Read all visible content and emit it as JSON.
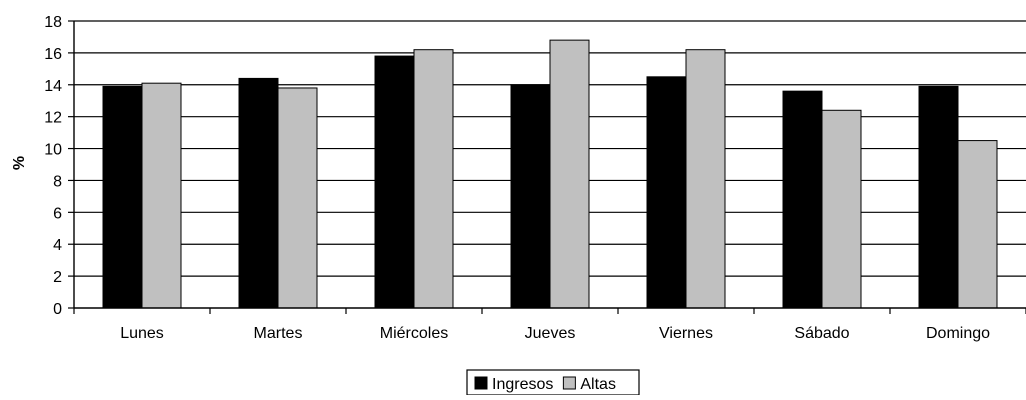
{
  "chart_data": {
    "type": "bar",
    "title": "",
    "xlabel": "",
    "ylabel": "%",
    "ylim": [
      0,
      18
    ],
    "ytick_step": 2,
    "grid": true,
    "legend": "bottom",
    "categories": [
      "Lunes",
      "Martes",
      "Miércoles",
      "Jueves",
      "Viernes",
      "Sábado",
      "Domingo"
    ],
    "series": [
      {
        "name": "Ingresos",
        "color": "#000000",
        "values": [
          13.9,
          14.4,
          15.8,
          14.0,
          14.5,
          13.6,
          13.9
        ]
      },
      {
        "name": "Altas",
        "color": "#c0c0c0",
        "values": [
          14.1,
          13.8,
          16.2,
          16.8,
          16.2,
          12.4,
          10.5
        ]
      }
    ]
  }
}
